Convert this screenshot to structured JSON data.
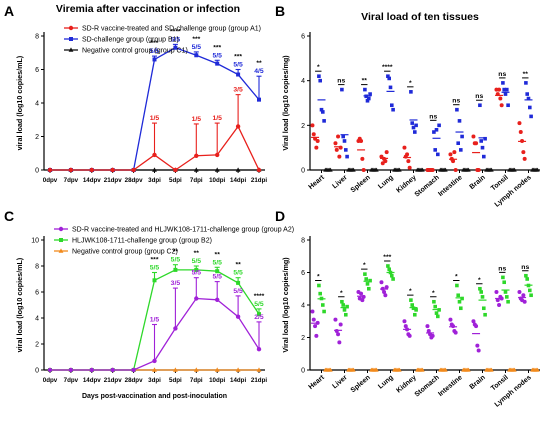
{
  "chart_data": [
    {
      "panel": "A",
      "type": "line",
      "title": "Viremia after vaccination or infection",
      "ylabel": "viral load (log10 copies/mL)",
      "xlabel": "",
      "ylim": [
        0,
        8
      ],
      "yticks": [
        0,
        2,
        4,
        6,
        8
      ],
      "categories": [
        "0dpv",
        "7dpv",
        "14dpv",
        "21dpv",
        "28dpv",
        "3dpi",
        "5dpi",
        "7dpi",
        "10dpi",
        "14dpi",
        "21dpi"
      ],
      "legend": "top-left",
      "series": [
        {
          "name": "SD-R vaccine-treated and SD-challenge group (group A1)",
          "color": "#e8201c",
          "values": [
            0,
            0,
            0,
            0,
            0,
            0.9,
            0,
            0.85,
            0.9,
            2.6,
            0
          ],
          "errors": [
            0,
            0,
            0,
            0,
            0,
            1.9,
            0,
            1.9,
            1.9,
            1.9,
            0
          ],
          "labels": [
            "",
            "",
            "",
            "",
            "",
            "1/5",
            "",
            "1/5",
            "1/5",
            "3/5",
            ""
          ]
        },
        {
          "name": "SD-challenge group (group B1)",
          "color": "#1f2ad8",
          "values": [
            0,
            0,
            0,
            0,
            0,
            6.6,
            7.3,
            6.85,
            6.35,
            5.7,
            4.2
          ],
          "errors": [
            0,
            0,
            0,
            0,
            0,
            0.2,
            0.2,
            0.2,
            0.2,
            0.3,
            1.4
          ],
          "labels": [
            "",
            "",
            "",
            "",
            "",
            "5/5",
            "5/5",
            "5/5",
            "5/5",
            "5/5",
            "4/5"
          ],
          "sig": [
            "",
            "",
            "",
            "",
            "",
            "***",
            "****",
            "***",
            "***",
            "***",
            "**"
          ]
        },
        {
          "name": "Negative control group (group C1)",
          "color": "#111111",
          "values": [
            0,
            0,
            0,
            0,
            0,
            0,
            0,
            0,
            0,
            0,
            0
          ]
        }
      ]
    },
    {
      "panel": "B",
      "type": "scatter",
      "title": "Viral load of ten tissues",
      "ylabel": "Viral load (log10 copies/mg)",
      "ylim": [
        0,
        6
      ],
      "yticks": [
        0,
        2,
        4,
        6
      ],
      "categories": [
        "Heart",
        "Liver",
        "Spleen",
        "Lung",
        "Kidney",
        "Stomach",
        "Intestine",
        "Brain",
        "Tonsil",
        "Lymph nodes"
      ],
      "sig": [
        "*",
        "ns",
        "**",
        "****",
        "*",
        "ns",
        "ns",
        "ns",
        "ns",
        "**"
      ],
      "series": [
        {
          "name": "A1",
          "color": "#e8201c",
          "points": [
            [
              2.0,
              1.6,
              1.4,
              1.0,
              1.3
            ],
            [
              1.2,
              0.9,
              1.5,
              0.6,
              1.0
            ],
            [
              1.3,
              1.4,
              1.3,
              0.5,
              0
            ],
            [
              0.6,
              0.3,
              0.5,
              0.4,
              0.8
            ],
            [
              1.0,
              0.6,
              0.7,
              0.4,
              0.1
            ],
            [
              0,
              0,
              0,
              0,
              0
            ],
            [
              0.7,
              0.5,
              0.4,
              0.8,
              0
            ],
            [
              1.5,
              1.2,
              1.2,
              0,
              0
            ],
            [
              3.6,
              3.4,
              3.6,
              3.2,
              2.9
            ],
            [
              2.1,
              1.7,
              1.3,
              0.8,
              0.5
            ]
          ]
        },
        {
          "name": "B1",
          "color": "#1f2ad8",
          "points": [
            [
              4.2,
              4.0,
              2.7,
              2.6,
              2.2
            ],
            [
              3.6,
              1.5,
              1.3,
              0.9,
              0.6
            ],
            [
              3.6,
              3.3,
              3.1,
              3.2,
              3.4
            ],
            [
              4.2,
              4.1,
              3.7,
              2.9,
              2.7
            ],
            [
              3.5,
              2.1,
              1.9,
              1.7,
              2.0
            ],
            [
              1.7,
              0.9,
              1.8,
              0.7,
              2.0
            ],
            [
              2.7,
              1.2,
              2.2,
              0.9,
              1.5
            ],
            [
              2.9,
              1.3,
              1.0,
              0.6,
              1.4
            ],
            [
              3.9,
              3.6,
              3.4,
              3.6,
              2.9
            ],
            [
              3.9,
              3.4,
              3.2,
              2.8,
              2.4
            ]
          ]
        },
        {
          "name": "C1",
          "color": "#111111",
          "points": [
            [
              0,
              0,
              0,
              0,
              0
            ],
            [
              0,
              0,
              0,
              0,
              0
            ],
            [
              0,
              0,
              0,
              0,
              0
            ],
            [
              0,
              0,
              0,
              0,
              0
            ],
            [
              0,
              0,
              0,
              0,
              0
            ],
            [
              0,
              0,
              0,
              0,
              0
            ],
            [
              0,
              0,
              0,
              0,
              0
            ],
            [
              0,
              0,
              0,
              0,
              0
            ],
            [
              0,
              0,
              0,
              0,
              0
            ],
            [
              0,
              0,
              0,
              0,
              0
            ]
          ]
        }
      ]
    },
    {
      "panel": "C",
      "type": "line",
      "title": "",
      "ylabel": "viral load (log10 copies/mL)",
      "xlabel": "Days post-vaccination and post-inoculation",
      "ylim": [
        0,
        10
      ],
      "yticks": [
        0,
        2,
        4,
        6,
        8,
        10
      ],
      "categories": [
        "0dpv",
        "7dpv",
        "14dpv",
        "21dpv",
        "28dpv",
        "3dpi",
        "5dpi",
        "7dpi",
        "10dpi",
        "14dpi",
        "21dpi"
      ],
      "legend": "top-left",
      "series": [
        {
          "name": "SD-R vaccine-treated and HLJWK108-1711-challenge group (group A2)",
          "color": "#a021d8",
          "values": [
            0,
            0,
            0,
            0,
            0,
            0.7,
            3.2,
            5.5,
            5.4,
            4.1,
            1.6
          ],
          "errors": [
            0,
            0,
            0,
            0,
            0,
            2.8,
            3.1,
            1.6,
            1.4,
            1.6,
            2.1
          ],
          "labels": [
            "",
            "",
            "",
            "",
            "",
            "1/5",
            "3/5",
            "5/5",
            "5/5",
            "5/5",
            "2/5"
          ]
        },
        {
          "name": "HLJWK108-1711-challenge group (group B2)",
          "color": "#2ed82a",
          "values": [
            0,
            0,
            0,
            0,
            0,
            6.9,
            7.7,
            7.7,
            7.6,
            6.7,
            4.3
          ],
          "errors": [
            0,
            0,
            0,
            0,
            0,
            0.6,
            0.4,
            0.3,
            0.3,
            0.4,
            0.4
          ],
          "labels": [
            "",
            "",
            "",
            "",
            "",
            "5/5",
            "5/5",
            "5/5",
            "5/5",
            "5/5",
            "5/5"
          ],
          "sig": [
            "",
            "",
            "",
            "",
            "",
            "***",
            "**",
            "**",
            "**",
            "**",
            "****"
          ]
        },
        {
          "name": "Negative control group (group C2)",
          "color": "#f28a1c",
          "values": [
            0,
            0,
            0,
            0,
            0,
            0,
            0,
            0,
            0,
            0,
            0
          ]
        }
      ]
    },
    {
      "panel": "D",
      "type": "scatter",
      "title": "",
      "ylabel": "Viral load (log10 copies/mg)",
      "ylim": [
        0,
        8
      ],
      "yticks": [
        0,
        2,
        4,
        6,
        8
      ],
      "categories": [
        "Heart",
        "Liver",
        "Spleen",
        "Lung",
        "Kidney",
        "Stomach",
        "Intestine",
        "Brain",
        "Tonsil",
        "Lymph nodes"
      ],
      "sig": [
        "*",
        "*",
        "*",
        "***",
        "*",
        "*",
        "*",
        "*",
        "ns",
        "ns"
      ],
      "series": [
        {
          "name": "A2",
          "color": "#a021d8",
          "points": [
            [
              3.6,
              3.1,
              2.7,
              2.1,
              2.9
            ],
            [
              3.1,
              2.4,
              2.2,
              1.7,
              2.8
            ],
            [
              4.8,
              4.4,
              4.7,
              4.3,
              4.5
            ],
            [
              5.4,
              5.0,
              4.8,
              4.6,
              5.1
            ],
            [
              3.0,
              2.7,
              2.5,
              2.2,
              2.1
            ],
            [
              2.7,
              2.4,
              2.2,
              2.0,
              2.1
            ],
            [
              3.1,
              2.8,
              2.7,
              2.4,
              2.3
            ],
            [
              3.0,
              2.8,
              2.7,
              1.5,
              1.2
            ],
            [
              4.8,
              4.3,
              4.0,
              4.5,
              4.4
            ],
            [
              4.8,
              4.4,
              4.3,
              4.6,
              4.2
            ]
          ]
        },
        {
          "name": "B2",
          "color": "#2ed82a",
          "points": [
            [
              5.2,
              4.7,
              4.4,
              4.0,
              3.6
            ],
            [
              4.2,
              4.0,
              3.7,
              3.4,
              3.9
            ],
            [
              5.9,
              5.6,
              5.3,
              5.0,
              5.5
            ],
            [
              6.4,
              6.2,
              6.0,
              5.8,
              5.6
            ],
            [
              4.3,
              4.0,
              3.8,
              3.4,
              3.7
            ],
            [
              4.2,
              3.9,
              3.5,
              3.3,
              3.7
            ],
            [
              5.2,
              4.6,
              4.2,
              3.8,
              4.4
            ],
            [
              5.0,
              4.8,
              4.5,
              3.8,
              3.4
            ],
            [
              5.7,
              5.4,
              4.8,
              4.5,
              4.2
            ],
            [
              5.8,
              5.6,
              5.2,
              4.9,
              4.6
            ]
          ]
        },
        {
          "name": "C2",
          "color": "#f28a1c",
          "points": [
            [
              0,
              0,
              0,
              0,
              0
            ],
            [
              0,
              0,
              0,
              0,
              0
            ],
            [
              0,
              0,
              0,
              0,
              0
            ],
            [
              0,
              0,
              0,
              0,
              0
            ],
            [
              0,
              0,
              0,
              0,
              0
            ],
            [
              0,
              0,
              0,
              0,
              0
            ],
            [
              0,
              0,
              0,
              0,
              0
            ],
            [
              0,
              0,
              0,
              0,
              0
            ],
            [
              0,
              0,
              0,
              0,
              0
            ],
            [
              0,
              0,
              0,
              0,
              0
            ]
          ]
        }
      ]
    }
  ],
  "panel_labels": [
    "A",
    "B",
    "C",
    "D"
  ]
}
